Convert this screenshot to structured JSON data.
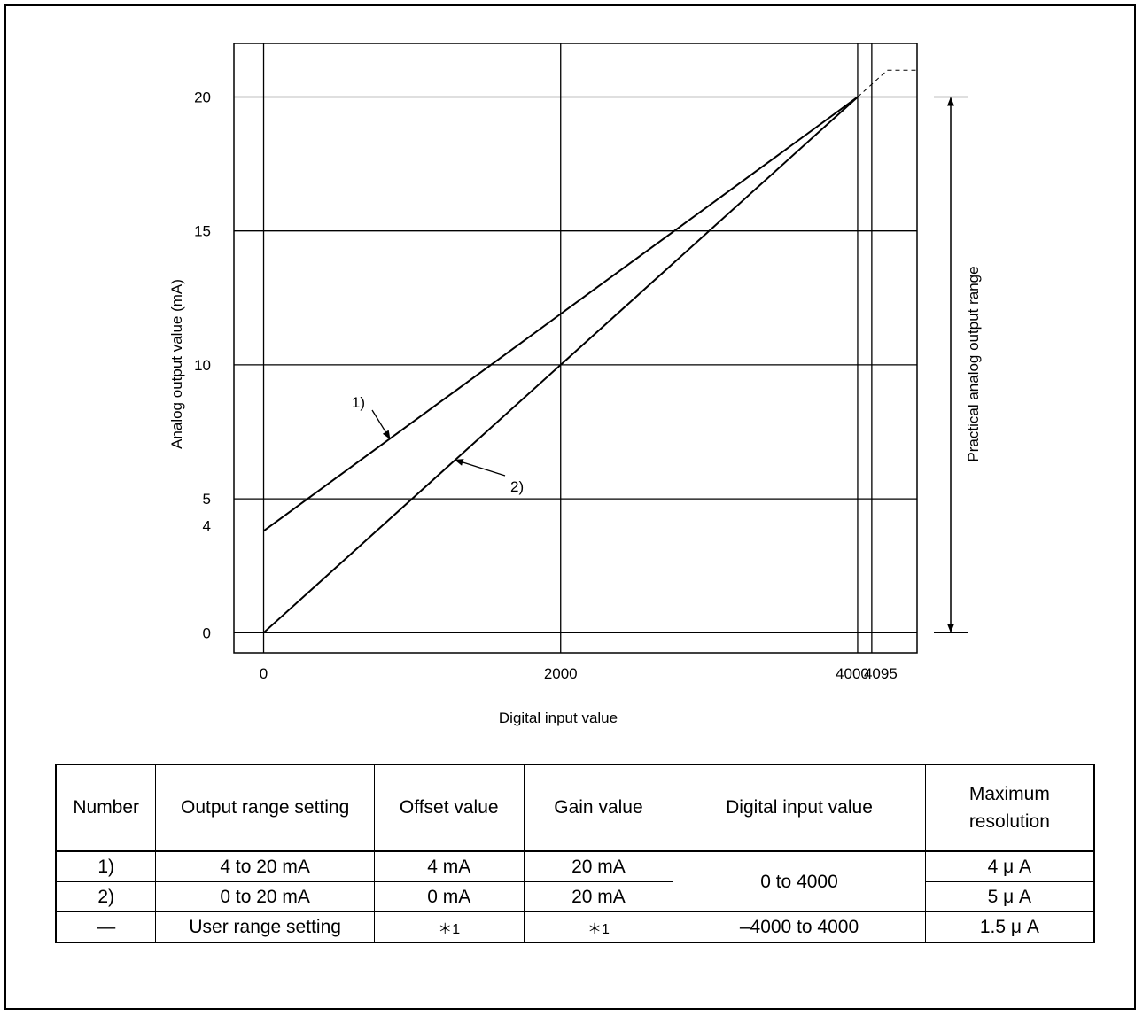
{
  "chart_data": {
    "type": "line",
    "xlabel": "Digital input value",
    "ylabel": "Analog output value (mA)",
    "side_label": "Practical analog output range",
    "x_ticks": [
      0,
      2000,
      4000,
      4095
    ],
    "y_ticks": [
      0,
      4,
      5,
      10,
      15,
      20
    ],
    "xlim": [
      -200,
      4400
    ],
    "ylim": [
      -0.75,
      22
    ],
    "series": [
      {
        "name": "1)",
        "x": [
          0,
          4000
        ],
        "y": [
          3.8,
          20
        ]
      },
      {
        "name": "2)",
        "x": [
          0,
          4000
        ],
        "y": [
          0,
          20
        ]
      }
    ],
    "saturation_line": {
      "x": [
        4000,
        4200,
        4400
      ],
      "y": [
        20,
        21,
        21
      ]
    }
  },
  "table": {
    "headers": [
      "Number",
      "Output range setting",
      "Offset value",
      "Gain value",
      "Digital input value",
      "Maximum\nresolution"
    ],
    "rows": [
      [
        "1)",
        "4 to 20 mA",
        "4 mA",
        "20 mA",
        "0 to 4000",
        "4 μ A"
      ],
      [
        "2)",
        "0 to 20 mA",
        "0 mA",
        "20 mA",
        "0 to 4000",
        "5 μ A"
      ],
      [
        "—",
        "User range setting",
        "＊1",
        "＊1",
        "–4000 to 4000",
        "1.5 μ A"
      ]
    ]
  }
}
